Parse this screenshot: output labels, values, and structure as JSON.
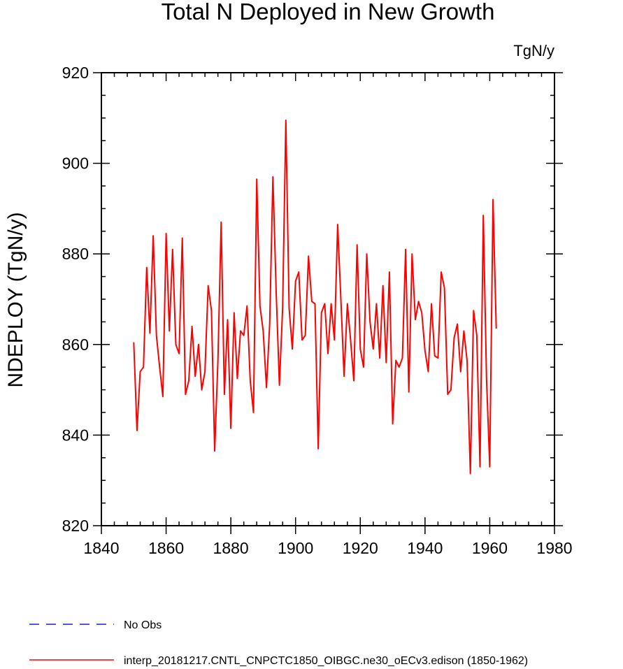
{
  "chart_data": {
    "type": "line",
    "title": "Total N Deployed in New Growth",
    "units_label": "TgN/y",
    "ylabel": "NDEPLOY  (TgN/y)",
    "xlabel": "",
    "xlim": [
      1840,
      1980
    ],
    "ylim": [
      820,
      920
    ],
    "x_ticks": [
      1840,
      1860,
      1880,
      1900,
      1920,
      1940,
      1960,
      1980
    ],
    "y_ticks": [
      820,
      840,
      860,
      880,
      900,
      920
    ],
    "grid": false,
    "legend": {
      "position": "bottom",
      "entries": [
        {
          "label": "No Obs",
          "color": "#1f1fcc",
          "style": "dashed"
        },
        {
          "label": "interp_20181217.CNTL_CNPCTC1850_OIBGC.ne30_oECv3.edison (1850-1962)",
          "color": "#ff0000",
          "style": "solid"
        }
      ]
    },
    "series": [
      {
        "name": "interp_20181217.CNTL_CNPCTC1850_OIBGC.ne30_oECv3.edison (1850-1962)",
        "color": "#ff0000",
        "x": [
          1850,
          1851,
          1852,
          1853,
          1854,
          1855,
          1856,
          1857,
          1858,
          1859,
          1860,
          1861,
          1862,
          1863,
          1864,
          1865,
          1866,
          1867,
          1868,
          1869,
          1870,
          1871,
          1872,
          1873,
          1874,
          1875,
          1876,
          1877,
          1878,
          1879,
          1880,
          1881,
          1882,
          1883,
          1884,
          1885,
          1886,
          1887,
          1888,
          1889,
          1890,
          1891,
          1892,
          1893,
          1894,
          1895,
          1896,
          1897,
          1898,
          1899,
          1900,
          1901,
          1902,
          1903,
          1904,
          1905,
          1906,
          1907,
          1908,
          1909,
          1910,
          1911,
          1912,
          1913,
          1914,
          1915,
          1916,
          1917,
          1918,
          1919,
          1920,
          1921,
          1922,
          1923,
          1924,
          1925,
          1926,
          1927,
          1928,
          1929,
          1930,
          1931,
          1932,
          1933,
          1934,
          1935,
          1936,
          1937,
          1938,
          1939,
          1940,
          1941,
          1942,
          1943,
          1944,
          1945,
          1946,
          1947,
          1948,
          1949,
          1950,
          1951,
          1952,
          1953,
          1954,
          1955,
          1956,
          1957,
          1958,
          1959,
          1960,
          1961,
          1962
        ],
        "values": [
          860.5,
          841,
          854,
          855,
          877,
          862.5,
          884,
          862,
          855,
          848.5,
          884.5,
          863,
          881,
          860,
          858,
          883.5,
          849,
          852,
          864,
          853,
          860,
          850,
          854,
          873,
          867.5,
          836.5,
          856,
          887,
          849,
          865.5,
          841.5,
          867,
          852.5,
          863,
          862,
          868.5,
          852,
          845,
          896.5,
          868.5,
          863,
          850.5,
          864.5,
          897,
          872,
          851,
          868,
          909.5,
          868,
          859,
          874,
          876,
          861,
          862,
          879.5,
          869.5,
          869,
          837,
          867,
          869,
          858,
          869,
          861,
          886.5,
          870,
          853,
          869,
          861,
          852,
          882,
          859,
          855,
          880,
          865,
          859,
          869,
          857,
          873,
          856,
          876,
          842.5,
          856.5,
          855,
          857,
          881,
          849.5,
          880,
          865.5,
          869.5,
          867,
          858.5,
          854,
          869,
          857.5,
          857,
          876,
          872.5,
          849,
          850,
          861.5,
          864.5,
          854,
          863,
          856.5,
          831.5,
          867.5,
          862,
          833,
          888.5,
          852.5,
          833,
          892,
          863.5
        ]
      }
    ]
  }
}
